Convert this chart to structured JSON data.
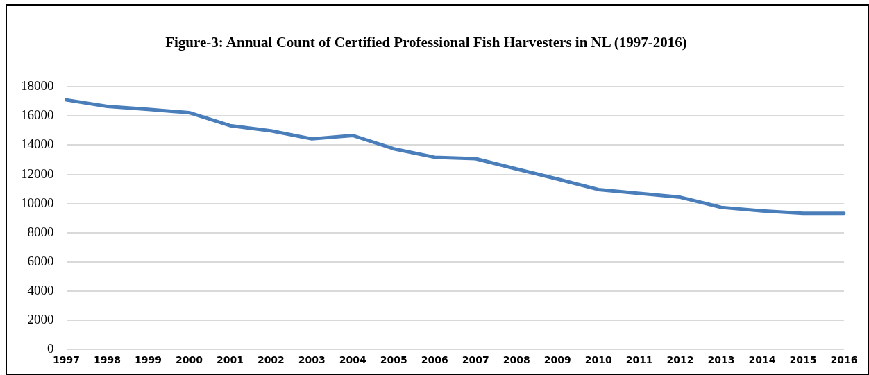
{
  "chart_data": {
    "type": "line",
    "title": "Figure-3: Annual Count of Certified Professional Fish Harvesters in NL (1997-2016)",
    "categories": [
      "1997",
      "1998",
      "1999",
      "2000",
      "2001",
      "2002",
      "2003",
      "2004",
      "2005",
      "2006",
      "2007",
      "2008",
      "2009",
      "2010",
      "2011",
      "2012",
      "2013",
      "2014",
      "2015",
      "2016"
    ],
    "series": [
      {
        "color": "#4a7ebb",
        "values": [
          17100,
          16660,
          16450,
          16230,
          15340,
          14980,
          14430,
          14660,
          13750,
          13170,
          13070,
          12370,
          11680,
          10960,
          10700,
          10430,
          9740,
          9500,
          9330,
          9330
        ]
      }
    ],
    "ylim": [
      0,
      18000
    ],
    "yticks": [
      0,
      2000,
      4000,
      6000,
      8000,
      10000,
      12000,
      14000,
      16000,
      18000
    ],
    "grid": "y",
    "legend": false,
    "marker": "none",
    "line_style": "solid"
  }
}
